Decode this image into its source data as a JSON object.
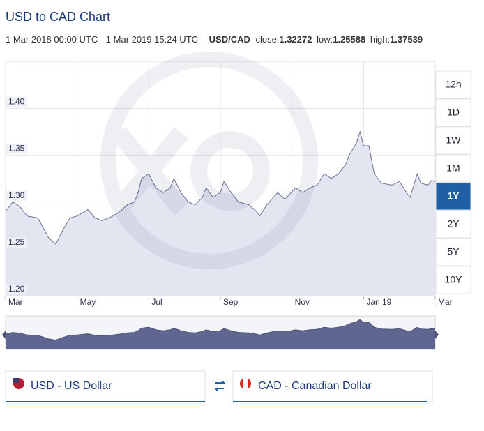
{
  "header": {
    "title": "USD to CAD Chart",
    "range": "1 Mar 2018 00:00 UTC - 1 Mar 2019 15:24 UTC",
    "pair": "USD/CAD",
    "close_label": "close:",
    "close": "1.32272",
    "low_label": "low:",
    "low": "1.25588",
    "high_label": "high:",
    "high": "1.37539"
  },
  "chart_data": {
    "type": "area",
    "color": "#6b7194",
    "fill": "#e3e5f1",
    "grid": true,
    "x": [
      0,
      0.2,
      0.4,
      0.6,
      0.9,
      1.2,
      1.4,
      1.6,
      1.8,
      2.0,
      2.3,
      2.5,
      2.7,
      3.0,
      3.2,
      3.4,
      3.6,
      3.7,
      3.8,
      4.0,
      4.2,
      4.4,
      4.6,
      4.7,
      4.9,
      5.1,
      5.3,
      5.5,
      5.6,
      5.8,
      6.0,
      6.1,
      6.3,
      6.5,
      6.8,
      7.0,
      7.1,
      7.3,
      7.6,
      7.8,
      8.1,
      8.3,
      8.5,
      8.7,
      8.9,
      9.1,
      9.3,
      9.5,
      9.6,
      9.8,
      9.9,
      10.0,
      10.15,
      10.3,
      10.5,
      10.8,
      11.0,
      11.2,
      11.3,
      11.5,
      11.6,
      11.8,
      11.9,
      12.0
    ],
    "values": [
      1.29,
      1.3,
      1.295,
      1.285,
      1.283,
      1.262,
      1.255,
      1.27,
      1.283,
      1.285,
      1.292,
      1.283,
      1.28,
      1.285,
      1.29,
      1.297,
      1.3,
      1.31,
      1.325,
      1.33,
      1.315,
      1.31,
      1.315,
      1.325,
      1.31,
      1.3,
      1.297,
      1.305,
      1.315,
      1.305,
      1.31,
      1.322,
      1.31,
      1.3,
      1.297,
      1.29,
      1.285,
      1.297,
      1.31,
      1.303,
      1.315,
      1.31,
      1.315,
      1.318,
      1.33,
      1.325,
      1.33,
      1.34,
      1.35,
      1.363,
      1.375,
      1.36,
      1.36,
      1.33,
      1.32,
      1.318,
      1.322,
      1.31,
      1.305,
      1.33,
      1.32,
      1.318,
      1.323,
      1.322
    ],
    "xlim": [
      0,
      12
    ],
    "xticks": [
      {
        "value": 0,
        "label": "Mar"
      },
      {
        "value": 2,
        "label": "May"
      },
      {
        "value": 4,
        "label": "Jul"
      },
      {
        "value": 6,
        "label": "Sep"
      },
      {
        "value": 8,
        "label": "Nov"
      },
      {
        "value": 10,
        "label": "Jan 19"
      },
      {
        "value": 12,
        "label": "Mar"
      }
    ],
    "ylim": [
      1.2,
      1.45
    ],
    "yticks": [
      {
        "value": 1.2,
        "label": "1.20"
      },
      {
        "value": 1.25,
        "label": "1.25"
      },
      {
        "value": 1.3,
        "label": "1.30"
      },
      {
        "value": 1.35,
        "label": "1.35"
      },
      {
        "value": 1.4,
        "label": "1.40"
      }
    ]
  },
  "periods": [
    "12h",
    "1D",
    "1W",
    "1M",
    "1Y",
    "2Y",
    "5Y",
    "10Y"
  ],
  "active_period": "1Y",
  "from_currency": "USD - US Dollar",
  "to_currency": "CAD - Canadian Dollar"
}
